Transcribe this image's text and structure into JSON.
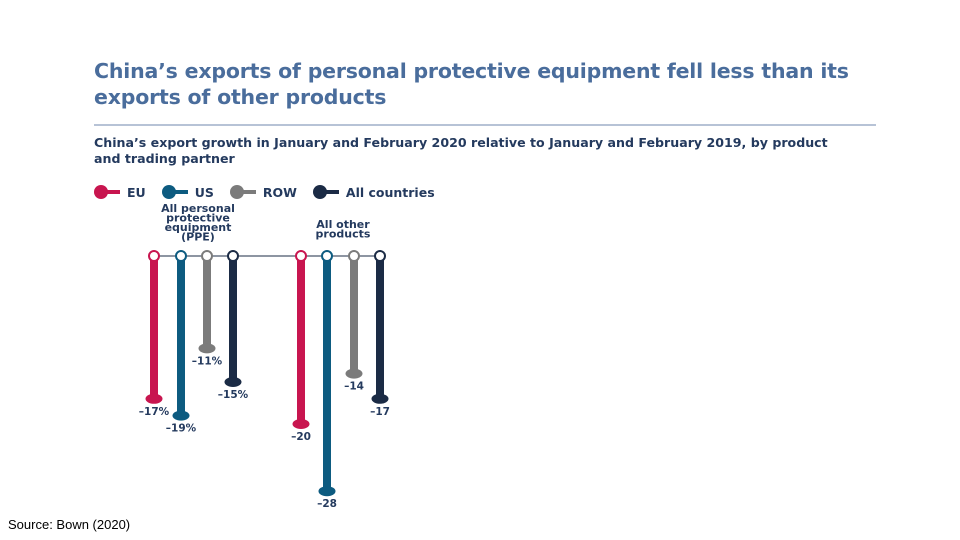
{
  "title": "China’s exports of personal protective equipment fell less than its exports of other products",
  "subtitle": "China’s export growth in January and February 2020 relative to January and February 2019, by product and trading partner",
  "source": "Source:  Bown (2020)",
  "colors": {
    "EU": "#c8154f",
    "US": "#0d5b80",
    "ROW": "#7b7b7b",
    "All countries": "#1b2b45",
    "title": "#4a6d9c",
    "text": "#243a5e"
  },
  "chart_data": {
    "type": "bar",
    "title": "China’s exports of personal protective equipment fell less than its exports of other products",
    "subtitle": "China’s export growth in January and February 2020 relative to January and February 2019, by product and trading partner",
    "categories": [
      [
        "All personal",
        "protective",
        "equipment",
        "(PPE)"
      ],
      [
        "All other",
        "products"
      ]
    ],
    "series": [
      {
        "name": "EU",
        "values": [
          -17,
          -20
        ],
        "labels": [
          "–17%",
          "–20"
        ]
      },
      {
        "name": "US",
        "values": [
          -19,
          -28
        ],
        "labels": [
          "–19%",
          "–28"
        ]
      },
      {
        "name": "ROW",
        "values": [
          -11,
          -14
        ],
        "labels": [
          "–11%",
          "–14"
        ]
      },
      {
        "name": "All countries",
        "values": [
          -15,
          -17
        ],
        "labels": [
          "–15%",
          "–17"
        ]
      }
    ],
    "ylim": [
      -30,
      0
    ],
    "legend": "top-left",
    "grid": false,
    "xlabel": "",
    "ylabel": ""
  }
}
